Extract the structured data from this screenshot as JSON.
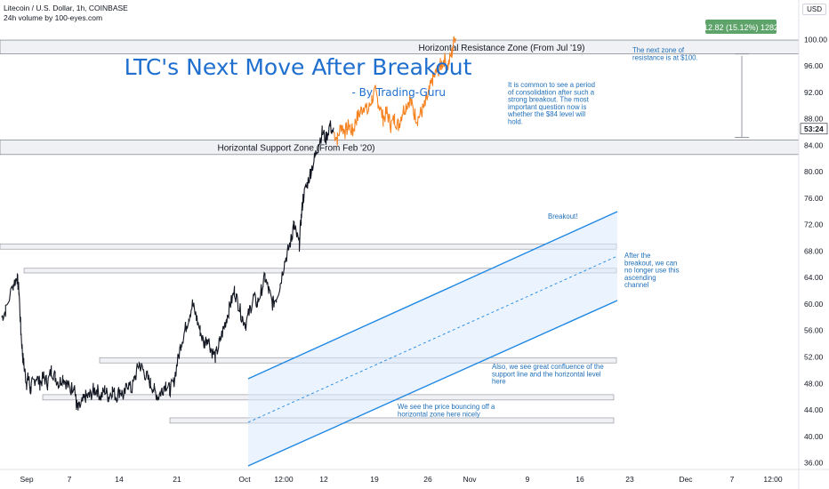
{
  "header": {
    "symbol_line": "Litecoin / U.S. Dollar, 1h, COINBASE",
    "volume_line": "24h volume by 100-eyes.com"
  },
  "currency_badge": "USD",
  "chart_data": {
    "type": "line",
    "title": "LTC's Next Move After Breakout",
    "subtitle": "- By Trading-Guru",
    "y_ticks": [
      "100.00",
      "96.00",
      "92.00",
      "88.00",
      "84.00",
      "80.00",
      "76.00",
      "72.00",
      "68.00",
      "64.00",
      "60.00",
      "56.00",
      "52.00",
      "48.00",
      "44.00",
      "40.00",
      "36.00"
    ],
    "x_ticks": [
      "Sep",
      "7",
      "14",
      "21",
      "Oct",
      "12:00",
      "12",
      "19",
      "26",
      "Nov",
      "9",
      "16",
      "23",
      "Dec",
      "7",
      "12:00"
    ],
    "ylim": [
      35,
      103
    ],
    "price_label": "53:24",
    "price_label_value": 86.5,
    "measure_label": "12.82 (15.12%) 1282",
    "colors": {
      "price": "#131722",
      "projection": "#f5821f",
      "channel": "#1e88e5",
      "channel_fill": "#dbeafd",
      "measure": "#5ea36a"
    },
    "series": [
      {
        "x": [
          0,
          1,
          3,
          4,
          4.5,
          5,
          5.5,
          6,
          6.5,
          7,
          7.5,
          8,
          9,
          10,
          11,
          12,
          13,
          14,
          15,
          16,
          17,
          18,
          19,
          19.5,
          20,
          21,
          22,
          23,
          24,
          25,
          26,
          27,
          28,
          29,
          30,
          31,
          32,
          33,
          34,
          35,
          36,
          37,
          38,
          39,
          40,
          41,
          42,
          43,
          44,
          45,
          46,
          47,
          48,
          49,
          50,
          51,
          52,
          53,
          54,
          55,
          56,
          57,
          58,
          59,
          60,
          61,
          62,
          63,
          64,
          65,
          66,
          67,
          68,
          69,
          70,
          71,
          72,
          73,
          74,
          75,
          76,
          76.5,
          77,
          78,
          78.5,
          79,
          80,
          81,
          82,
          83,
          84,
          85,
          86,
          87
        ],
        "y": [
          58,
          59,
          63,
          64,
          62,
          56,
          52,
          50,
          48,
          49,
          47,
          48,
          49,
          48,
          49,
          48,
          50,
          49,
          48,
          49,
          48,
          47,
          48,
          45,
          44,
          45,
          46,
          46,
          47,
          47,
          46,
          47,
          46,
          47,
          46,
          47,
          46,
          48,
          47,
          49,
          51,
          50,
          49,
          48,
          47,
          46,
          47,
          48,
          47,
          48,
          51,
          54,
          56,
          58,
          60,
          58,
          56,
          54,
          55,
          53,
          52,
          54,
          56,
          58,
          60,
          62,
          60,
          58,
          57,
          59,
          61,
          60,
          62,
          64,
          62,
          60,
          61,
          63,
          66,
          68,
          70,
          72,
          71,
          69,
          73,
          76,
          78,
          80,
          82,
          84,
          86,
          85,
          87,
          86
        ]
      },
      {
        "x": [
          87,
          88,
          89,
          90,
          91,
          92,
          93,
          94,
          95,
          96,
          97,
          98,
          99,
          100,
          101,
          102,
          103,
          104,
          105,
          106,
          107,
          108,
          109,
          110,
          111,
          112,
          113,
          114,
          115,
          116,
          117,
          118,
          119
        ],
        "y": [
          86,
          85,
          87,
          86,
          87,
          86,
          88,
          89,
          90,
          89,
          91,
          92,
          90,
          88,
          89,
          87,
          88,
          87,
          89,
          90,
          91,
          89,
          88,
          89,
          90,
          92,
          94,
          95,
          96,
          97,
          96,
          98,
          101
        ]
      }
    ],
    "zones": [
      {
        "label": "Horizontal Resistance Zone (From Jul '19)",
        "from": 97.8,
        "to": 99.9
      },
      {
        "label": "Horizontal Support Zone (From Feb '20)",
        "from": 82.6,
        "to": 84.8
      }
    ],
    "minor_zones": [
      {
        "from": 68.3,
        "to": 69.1
      },
      {
        "from": 64.7,
        "to": 65.4
      },
      {
        "from": 51.1,
        "to": 51.9
      },
      {
        "from": 45.5,
        "to": 46.3
      },
      {
        "from": 42.0,
        "to": 42.8
      }
    ],
    "annotations": [
      {
        "lines": [
          "The next zone of",
          "resistance is at $100."
        ]
      },
      {
        "lines": [
          "It is common to see a period",
          "of consolidation after such a",
          "strong breakout. The most",
          "important question now is",
          "whether the $84 level will",
          "hold."
        ]
      },
      {
        "lines": [
          "Breakout!"
        ]
      },
      {
        "lines": [
          "After the",
          "breakout, we can",
          "no longer use this",
          "ascending",
          "channel"
        ]
      },
      {
        "lines": [
          "Also, we see great confluence of the",
          "support line and the horizontal level",
          "here"
        ]
      },
      {
        "lines": [
          "We see the price bouncing off a",
          "horizontal zone here nicely"
        ]
      }
    ]
  }
}
